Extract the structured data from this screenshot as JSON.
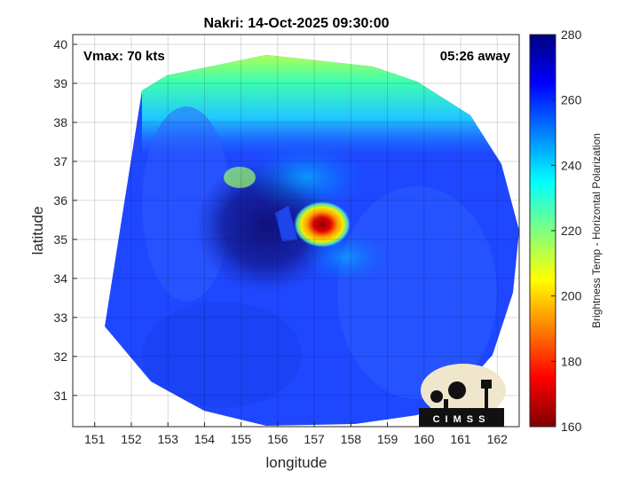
{
  "chart_data": {
    "type": "heatmap",
    "title": "Nakri: 14-Oct-2025 09:30:00",
    "xlabel": "longitude",
    "ylabel": "latitude",
    "xlim": [
      150.4,
      162.6
    ],
    "ylim": [
      30.2,
      40.25
    ],
    "x_ticks": [
      "151",
      "152",
      "153",
      "154",
      "155",
      "156",
      "157",
      "158",
      "159",
      "160",
      "161",
      "162"
    ],
    "y_ticks": [
      "31",
      "32",
      "33",
      "34",
      "35",
      "36",
      "37",
      "38",
      "39",
      "40"
    ],
    "grid": true,
    "annotations": {
      "vmax": "Vmax: 70 kts",
      "time_away": "05:26 away"
    },
    "storm_center": {
      "lon": 157.1,
      "lat": 35.45
    },
    "colorbar": {
      "label": "Brightness Temp - Horizontal Polarization",
      "range": [
        160,
        280
      ],
      "ticks": [
        "280",
        "260",
        "240",
        "220",
        "200",
        "180",
        "160"
      ],
      "colormap": "jet"
    },
    "logo_text": "CIMSS"
  }
}
